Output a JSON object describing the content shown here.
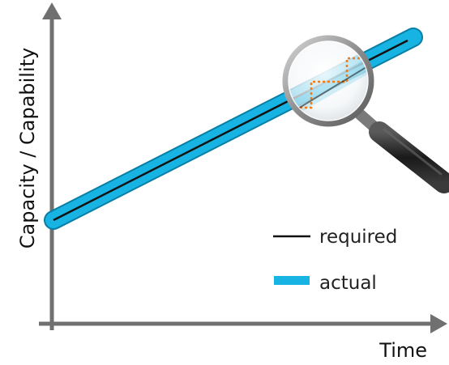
{
  "diagram": {
    "y_axis_label": "Capacity / Capability",
    "x_axis_label": "Time",
    "legend": [
      {
        "label": "required",
        "style": "thin-line",
        "color": "#111111"
      },
      {
        "label": "actual",
        "style": "thick-band",
        "color": "#17b3e3"
      }
    ],
    "colors": {
      "axis": "#707070",
      "actual_band": "#17b3e3",
      "actual_band_edge": "#0a7fa6",
      "required_line": "#111111",
      "magnified_detail": "#f07b1a",
      "magnifier_rim": "#8a8a8a",
      "magnifier_handle": "#2a2a2a"
    },
    "icons": {
      "magnifier": "magnifying-glass-icon"
    }
  }
}
